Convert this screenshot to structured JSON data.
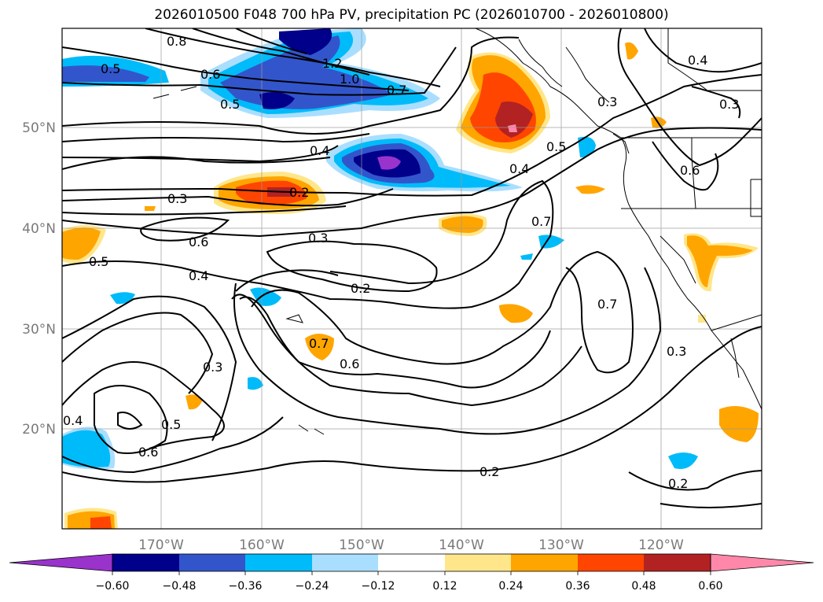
{
  "title": "2026010500 F048 700 hPa PV, precipitation PC (2026010700 - 2026010800)",
  "map": {
    "lon_labels": [
      "170°W",
      "160°W",
      "150°W",
      "140°W",
      "130°W",
      "120°W"
    ],
    "lat_labels": [
      "50°N",
      "40°N",
      "30°N",
      "20°N"
    ]
  },
  "contour_labels": [
    "0.8",
    "0.5",
    "0.6",
    "1.2",
    "1.0",
    "0.7",
    "0.5",
    "0.4",
    "0.3",
    "0.4",
    "0.3",
    "0.5",
    "0.4",
    "0.6",
    "0.2",
    "0.3",
    "0.7",
    "0.6",
    "0.5",
    "0.3",
    "0.4",
    "0.2",
    "0.7",
    "0.6",
    "0.3",
    "0.7",
    "0.3",
    "0.4",
    "0.5",
    "0.6",
    "0.2",
    "0.2"
  ],
  "colorbar": {
    "ticks": [
      "−0.60",
      "−0.48",
      "−0.36",
      "−0.24",
      "−0.12",
      "0.12",
      "0.24",
      "0.36",
      "0.48",
      "0.60"
    ],
    "colors": [
      "#9933cc",
      "#00008b",
      "#3355cc",
      "#00bbf9",
      "#aadeff",
      "#ffffff",
      "#ffe68a",
      "#ffa500",
      "#ff4500",
      "#b22222",
      "#ff88aa"
    ]
  }
}
